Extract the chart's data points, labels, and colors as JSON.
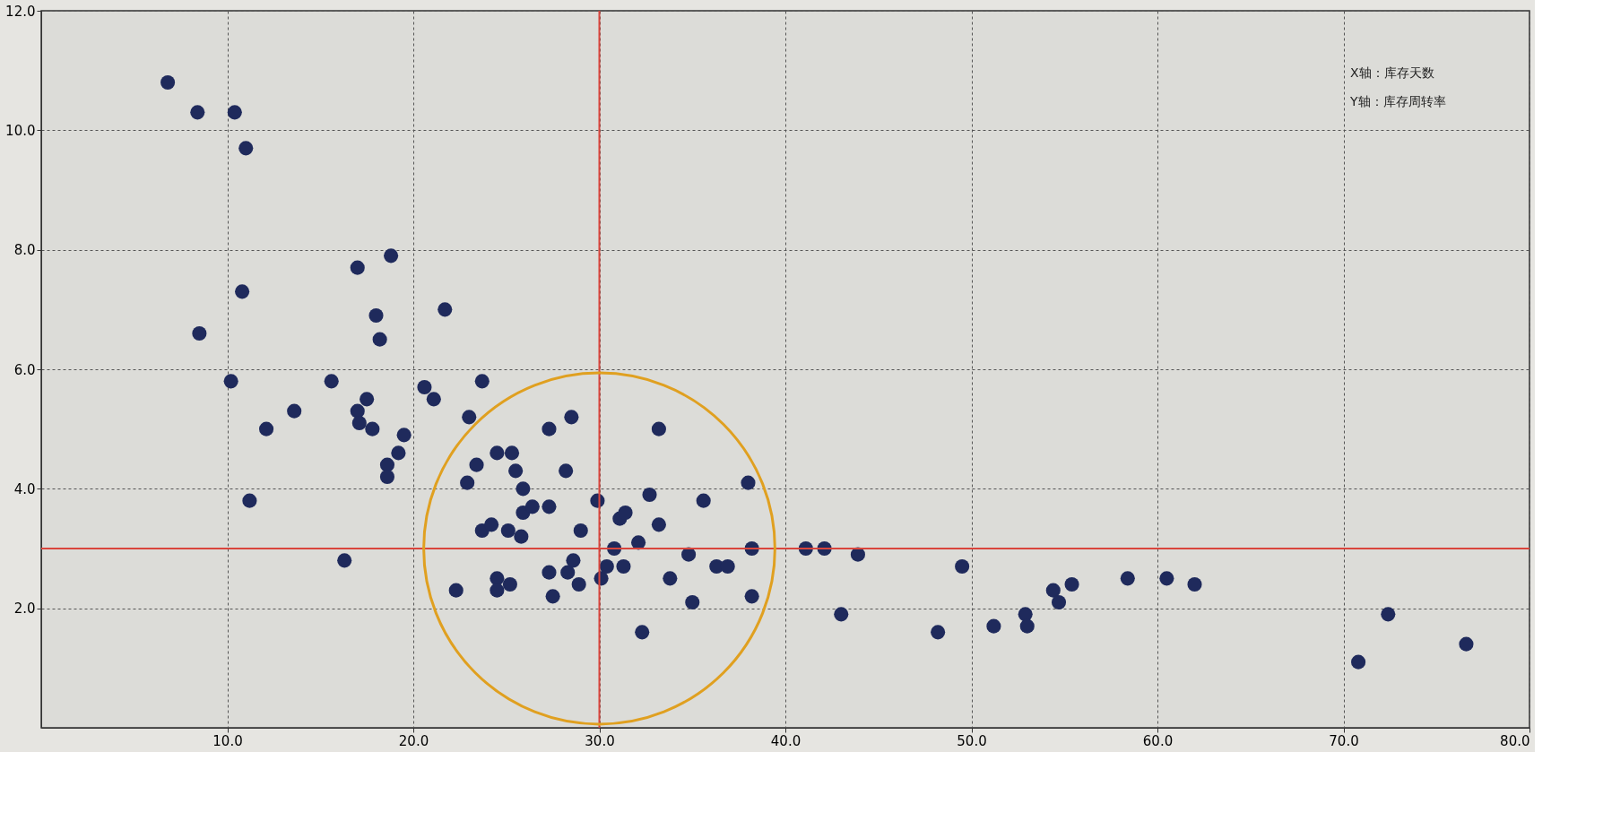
{
  "chart_data": {
    "type": "scatter",
    "annotations": [
      "X轴：库存天数",
      "Y轴：库存周转率"
    ],
    "x": [
      6.8,
      8.4,
      10.4,
      11.0,
      10.8,
      8.5,
      10.2,
      12.1,
      13.6,
      11.2,
      15.6,
      16.3,
      17.0,
      18.8,
      18.0,
      18.2,
      17.5,
      17.0,
      17.1,
      17.8,
      19.5,
      19.2,
      18.6,
      18.6,
      21.7,
      20.6,
      21.1,
      23.7,
      23.0,
      23.4,
      22.9,
      22.3,
      24.5,
      25.3,
      25.5,
      25.9,
      23.7,
      24.2,
      25.1,
      25.8,
      25.9,
      26.4,
      27.3,
      27.3,
      28.5,
      28.2,
      29.0,
      29.9,
      24.5,
      25.2,
      24.5,
      27.3,
      27.5,
      28.3,
      28.6,
      28.9,
      30.1,
      30.4,
      30.8,
      31.1,
      31.4,
      31.3,
      32.1,
      32.7,
      33.2,
      33.2,
      32.3,
      33.8,
      34.8,
      35.0,
      35.6,
      36.3,
      36.9,
      38.0,
      38.2,
      38.2,
      41.1,
      42.1,
      43.9,
      43.0,
      48.2,
      49.5,
      51.2,
      52.9,
      53.0,
      54.4,
      54.7,
      55.4,
      58.4,
      60.5,
      62.0,
      70.8,
      72.4,
      76.6
    ],
    "series": [
      {
        "color": "#1f2a5c",
        "values": [
          10.8,
          10.3,
          10.3,
          9.7,
          7.3,
          6.6,
          5.8,
          5.0,
          5.3,
          3.8,
          5.8,
          2.8,
          7.7,
          7.9,
          6.9,
          6.5,
          5.5,
          5.3,
          5.1,
          5.0,
          4.9,
          4.6,
          4.4,
          4.2,
          7.0,
          5.7,
          5.5,
          5.8,
          5.2,
          4.4,
          4.1,
          2.3,
          4.6,
          4.6,
          4.3,
          4.0,
          3.3,
          3.4,
          3.3,
          3.2,
          3.6,
          3.7,
          3.7,
          5.0,
          5.2,
          4.3,
          3.3,
          3.8,
          2.5,
          2.4,
          2.3,
          2.6,
          2.2,
          2.6,
          2.8,
          2.4,
          2.5,
          2.7,
          3.0,
          3.5,
          3.6,
          2.7,
          3.1,
          3.9,
          3.4,
          5.0,
          1.6,
          2.5,
          2.9,
          2.1,
          3.8,
          2.7,
          2.7,
          4.1,
          3.0,
          2.2,
          3.0,
          3.0,
          2.9,
          1.9,
          1.6,
          2.7,
          1.7,
          1.9,
          1.7,
          2.3,
          2.1,
          2.4,
          2.5,
          2.5,
          2.4,
          1.1,
          1.9,
          1.4
        ]
      }
    ],
    "xlim": [
      0,
      80
    ],
    "xticks": [
      {
        "value": 10,
        "label": "10.0"
      },
      {
        "value": 20,
        "label": "20.0"
      },
      {
        "value": 30,
        "label": "30.0"
      },
      {
        "value": 40,
        "label": "40.0"
      },
      {
        "value": 50,
        "label": "50.0"
      },
      {
        "value": 60,
        "label": "60.0"
      },
      {
        "value": 70,
        "label": "70.0"
      },
      {
        "value": 80,
        "label": "80.0"
      }
    ],
    "ylim": [
      0,
      12
    ],
    "yticks": [
      {
        "value": 2,
        "label": "2.0"
      },
      {
        "value": 4,
        "label": "4.0"
      },
      {
        "value": 6,
        "label": "6.0"
      },
      {
        "value": 8,
        "label": "8.0"
      },
      {
        "value": 10,
        "label": "10.0"
      },
      {
        "value": 12,
        "label": "12.0"
      }
    ],
    "ref_lines": [
      {
        "axis": "x",
        "value": 30,
        "color": "#d9453c"
      },
      {
        "axis": "y",
        "value": 3,
        "color": "#d9453c"
      }
    ],
    "grid": true,
    "marker": "circle"
  }
}
